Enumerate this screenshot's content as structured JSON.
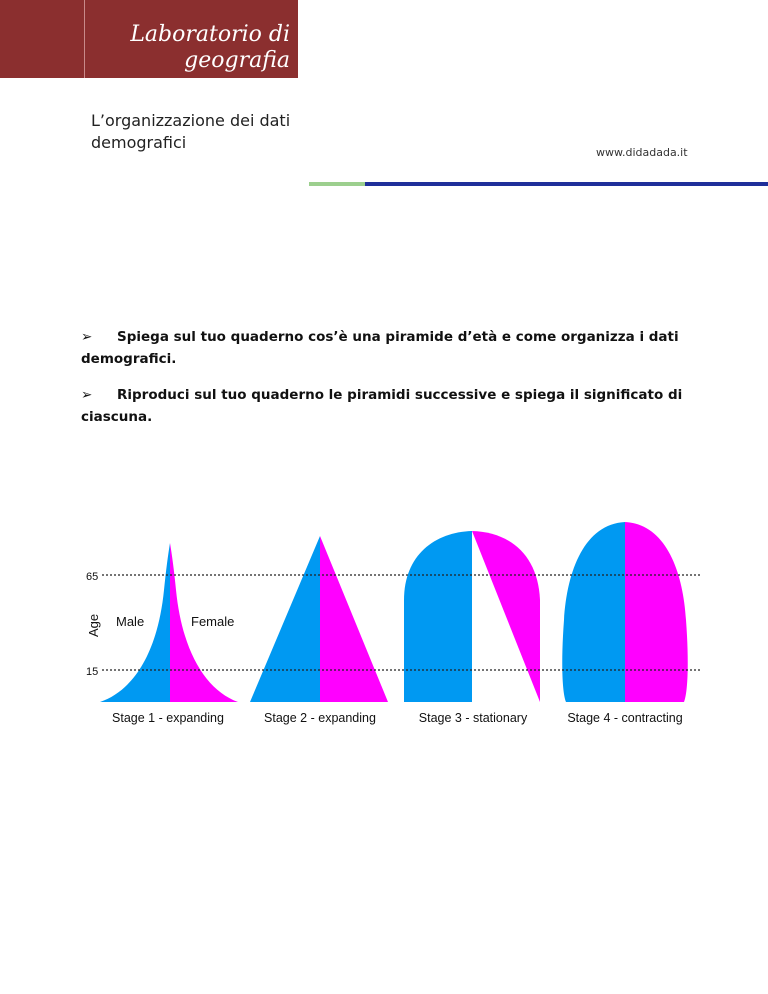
{
  "header": {
    "title": "Laboratorio di geografia",
    "subtitle": "L’organizzazione dei dati demografici",
    "website": "www.didadada.it"
  },
  "bullets": [
    {
      "arrow": "➢",
      "text": "Spiega sul tuo quaderno cos’è una piramide d’età e come organizza i dati demografici."
    },
    {
      "arrow": "➢",
      "text": "Riproduci sul tuo quaderno le piramidi  successive e spiega il significato di ciascuna."
    }
  ],
  "figure": {
    "y_axis_label": "Age",
    "tick_65": "65",
    "tick_15": "15",
    "male_label": "Male",
    "female_label": "Female",
    "stages": [
      {
        "label": "Stage 1 - expanding"
      },
      {
        "label": "Stage 2 - expanding"
      },
      {
        "label": "Stage 3 - stationary"
      },
      {
        "label": "Stage 4 - contracting"
      }
    ],
    "colors": {
      "male": "#0099f2",
      "female": "#ff00ff"
    }
  }
}
